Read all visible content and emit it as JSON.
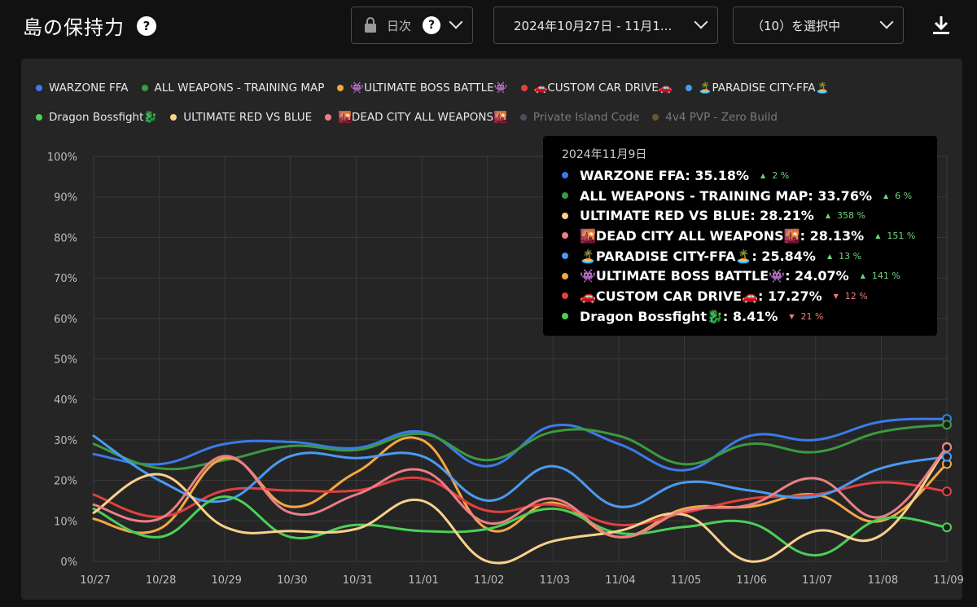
{
  "header": {
    "title": "島の保持力",
    "interval_label": "日次",
    "date_range": "2024年10月27日  - 11月1...",
    "selection_label": "（10）を選択中"
  },
  "icons": {
    "help": "help-icon",
    "lock": "lock-icon",
    "chevron": "chevron-down-icon",
    "download": "download-icon"
  },
  "legend": [
    {
      "label": "WARZONE FFA",
      "color": "#3b7ae8",
      "visible": true
    },
    {
      "label": "ALL WEAPONS - TRAINING MAP",
      "color": "#3b9a3f",
      "visible": true
    },
    {
      "label": "👾ULTIMATE BOSS BATTLE👾",
      "color": "#f5a841",
      "visible": true
    },
    {
      "label": "🚗CUSTOM CAR DRIVE🚗",
      "color": "#e0403f",
      "visible": true
    },
    {
      "label": "🏝️PARADISE CITY-FFA🏝️",
      "color": "#4a9af0",
      "visible": true
    },
    {
      "label": "Dragon Bossfight🐉",
      "color": "#4ccf56",
      "visible": true
    },
    {
      "label": "ULTIMATE RED VS BLUE",
      "color": "#fad08c",
      "visible": true
    },
    {
      "label": "🌇DEAD CITY ALL WEAPONS🌇",
      "color": "#ea7f86",
      "visible": true
    },
    {
      "label": "Private Island Code",
      "color": "#4b4e63",
      "visible": false
    },
    {
      "label": "4v4 PVP - Zero Build",
      "color": "#6a5532",
      "visible": false
    }
  ],
  "tooltip": {
    "date": "2024年11月9日",
    "rows": [
      {
        "text": "WARZONE FFA: 35.18%",
        "change": "2 %",
        "dir": "up",
        "color": "#3b7ae8"
      },
      {
        "text": "ALL WEAPONS - TRAINING MAP: 33.76%",
        "change": "6 %",
        "dir": "up",
        "color": "#3b9a3f"
      },
      {
        "text": "ULTIMATE RED VS BLUE: 28.21%",
        "change": "358 %",
        "dir": "up",
        "color": "#fad08c"
      },
      {
        "text": "🌇DEAD CITY ALL WEAPONS🌇: 28.13%",
        "change": "151 %",
        "dir": "up",
        "color": "#ea7f86"
      },
      {
        "text": "🏝️PARADISE CITY-FFA🏝️: 25.84%",
        "change": "13 %",
        "dir": "up",
        "color": "#4a9af0"
      },
      {
        "text": "👾ULTIMATE BOSS BATTLE👾: 24.07%",
        "change": "141 %",
        "dir": "up",
        "color": "#f5a841"
      },
      {
        "text": "🚗CUSTOM CAR DRIVE🚗: 17.27%",
        "change": "12 %",
        "dir": "down",
        "color": "#e0403f"
      },
      {
        "text": "Dragon Bossfight🐉: 8.41%",
        "change": "21 %",
        "dir": "down",
        "color": "#4ccf56"
      }
    ]
  },
  "chart_data": {
    "type": "line",
    "title": "島の保持力",
    "categories": [
      "10/27",
      "10/28",
      "10/29",
      "10/30",
      "10/31",
      "11/01",
      "11/02",
      "11/03",
      "11/04",
      "11/05",
      "11/06",
      "11/07",
      "11/08",
      "11/09"
    ],
    "y_ticks": [
      "0%",
      "10%",
      "20%",
      "30%",
      "40%",
      "50%",
      "60%",
      "70%",
      "80%",
      "90%",
      "100%"
    ],
    "ylim": [
      0,
      100
    ],
    "grid": true,
    "series": [
      {
        "name": "WARZONE FFA",
        "color": "#3b7ae8",
        "values": [
          26.5,
          24,
          29,
          29.5,
          28,
          32,
          23.5,
          33.5,
          29,
          22.5,
          31,
          30,
          34.5,
          35.18
        ]
      },
      {
        "name": "ALL WEAPONS - TRAINING MAP",
        "color": "#3b9a3f",
        "values": [
          29,
          23,
          25,
          28.5,
          27.5,
          31.5,
          25,
          32,
          31,
          24,
          29,
          27,
          32,
          33.76
        ]
      },
      {
        "name": "👾ULTIMATE BOSS BATTLE👾",
        "color": "#f5a841",
        "values": [
          10.5,
          8,
          25.5,
          13.5,
          22,
          30,
          8,
          14.5,
          6,
          13,
          13.5,
          16.5,
          10,
          24.07
        ]
      },
      {
        "name": "🚗CUSTOM CAR DRIVE🚗",
        "color": "#e0403f",
        "values": [
          16.5,
          11,
          17.5,
          17.5,
          17.5,
          20.5,
          12.5,
          14,
          9,
          12,
          15.5,
          16.5,
          19.5,
          17.27
        ]
      },
      {
        "name": "🏝️PARADISE CITY-FFA🏝️",
        "color": "#4a9af0",
        "values": [
          31,
          20,
          15,
          26,
          25.5,
          26,
          15,
          23.5,
          13.5,
          19.5,
          17.5,
          16,
          23,
          25.84
        ]
      },
      {
        "name": "Dragon Bossfight🐉",
        "color": "#4ccf56",
        "values": [
          13,
          6,
          16,
          6,
          9,
          7.5,
          8,
          13,
          7,
          8.5,
          9.5,
          1.5,
          10.5,
          8.41
        ]
      },
      {
        "name": "ULTIMATE RED VS BLUE",
        "color": "#fad08c",
        "values": [
          12,
          21.5,
          8.5,
          7.5,
          8,
          15,
          0,
          5,
          7.5,
          11.5,
          0,
          7.5,
          6.5,
          28.21
        ]
      },
      {
        "name": "🌇DEAD CITY ALL WEAPONS🌇",
        "color": "#ea7f86",
        "values": [
          14,
          10.5,
          26,
          12,
          16.5,
          22.5,
          9.5,
          15.5,
          6,
          12.5,
          14,
          20.5,
          11,
          28.13
        ]
      }
    ]
  }
}
